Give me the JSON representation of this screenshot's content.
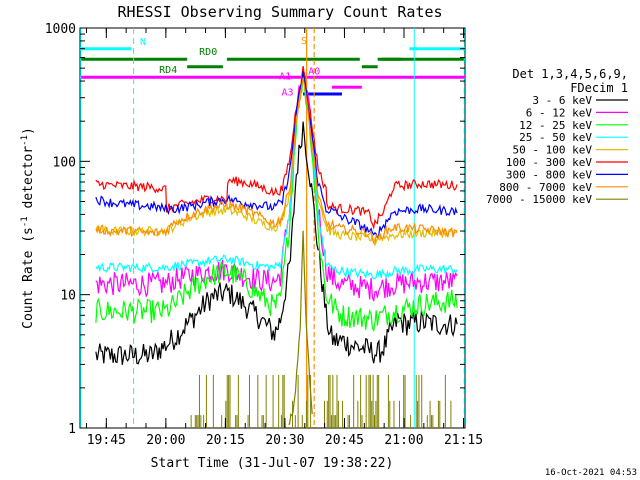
{
  "chart_data": {
    "type": "line",
    "title": "RHESSI Observing Summary Count Rates",
    "xlabel": "Start Time (31-Jul-07 19:38:22)",
    "ylabel": "Count Rate (s⁻¹ detector⁻¹)",
    "ylabel_parts": {
      "main": "Count Rate (s",
      "sup1": "-1",
      "mid": " detector",
      "sup2": "-1",
      "end": ")"
    },
    "yscale": "log",
    "ylim": [
      1,
      1000
    ],
    "xlim_minutes": [
      0,
      97
    ],
    "y_ticks": [
      {
        "value": 1,
        "label": "1"
      },
      {
        "value": 10,
        "label": "10"
      },
      {
        "value": 100,
        "label": "100"
      },
      {
        "value": 1000,
        "label": "1000"
      }
    ],
    "x_ticks": [
      {
        "minutes": 6.63,
        "label": "19:45"
      },
      {
        "minutes": 21.63,
        "label": "20:00"
      },
      {
        "minutes": 36.63,
        "label": "20:15"
      },
      {
        "minutes": 51.63,
        "label": "20:30"
      },
      {
        "minutes": 66.63,
        "label": "20:45"
      },
      {
        "minutes": 81.63,
        "label": "21:00"
      },
      {
        "minutes": 96.63,
        "label": "21:15"
      }
    ],
    "legend": {
      "placement": "right",
      "header": [
        "Det 1,3,4,5,6,9,",
        "FDecim 1"
      ]
    },
    "series": [
      {
        "name": "3 - 6 keV",
        "color": "#000000",
        "x": [
          4,
          7,
          13,
          18,
          21.6,
          24,
          28,
          33,
          37.2,
          41,
          45,
          49,
          50.5,
          53,
          54.5,
          56.2,
          58,
          60,
          62,
          63,
          64,
          66.5,
          68,
          71,
          73,
          75,
          76.5,
          78,
          80,
          82,
          86,
          91,
          95
        ],
        "y": [
          3.5,
          3.5,
          3.5,
          3.5,
          4.2,
          4.8,
          6.5,
          9.5,
          10.5,
          8.6,
          6.8,
          5.1,
          6.5,
          18,
          80,
          190,
          75,
          22,
          7,
          5,
          4.5,
          4.5,
          4.2,
          4,
          3.8,
          3.6,
          4,
          5,
          6.5,
          6,
          6.2,
          6,
          6
        ]
      },
      {
        "name": "6 - 12 keV",
        "color": "#ff00ff",
        "x": [
          4,
          13,
          18,
          21.6,
          24,
          28,
          33,
          37.2,
          41,
          45,
          49,
          50.5,
          53,
          54.5,
          56.2,
          58,
          60,
          62,
          63,
          64,
          66,
          70,
          74,
          76.5,
          79,
          86,
          95
        ],
        "y": [
          12,
          12,
          12,
          12,
          13,
          14,
          15,
          15.5,
          14,
          13,
          12.5,
          14,
          50,
          220,
          480,
          200,
          45,
          16,
          14,
          13,
          12,
          11.5,
          11,
          11.5,
          12,
          12.5,
          12.5
        ]
      },
      {
        "name": "12 - 25 keV",
        "color": "#00ff00",
        "x": [
          4,
          13,
          18,
          21.6,
          24,
          28,
          33,
          37.2,
          41,
          45,
          49,
          50.5,
          53,
          54.5,
          56.2,
          58,
          60,
          62,
          63,
          64,
          66,
          70,
          74,
          76.5,
          79,
          86,
          95
        ],
        "y": [
          7.5,
          7.5,
          7.5,
          7.5,
          8.5,
          11,
          14,
          15,
          13,
          10,
          8,
          9,
          40,
          200,
          450,
          180,
          30,
          10,
          9,
          8,
          7,
          6.8,
          6.5,
          7,
          7.5,
          8.5,
          9
        ]
      },
      {
        "name": "25 - 50 keV",
        "color": "#00ffff",
        "x": [
          4,
          13,
          18,
          21.6,
          24,
          28,
          33,
          37.2,
          41,
          45,
          49,
          50.5,
          53,
          54.5,
          56.2,
          58,
          60,
          62,
          63,
          64,
          66,
          70,
          74,
          76.5,
          79,
          86,
          95
        ],
        "y": [
          16,
          16,
          16,
          16,
          16.5,
          17,
          18,
          18.5,
          17.5,
          16.5,
          16,
          17,
          45,
          220,
          470,
          200,
          40,
          17,
          16,
          15.5,
          15,
          14.5,
          14,
          14.5,
          15,
          15.5,
          15.5
        ]
      },
      {
        "name": "50 - 100 keV",
        "color": "#e0c000",
        "x": [
          4,
          13,
          18,
          21.6,
          24,
          28,
          33,
          37.2,
          41,
          45,
          49,
          50.5,
          53,
          54.5,
          56.2,
          58,
          60,
          62,
          63,
          64,
          66,
          70,
          74,
          76.5,
          79,
          86,
          95
        ],
        "y": [
          30,
          30,
          30,
          30,
          33,
          38,
          42,
          43,
          40,
          35,
          32,
          34,
          60,
          230,
          480,
          210,
          55,
          32,
          30,
          29,
          28,
          27,
          26,
          27,
          28,
          29,
          29
        ]
      },
      {
        "name": "100 - 300 keV",
        "color": "#ff0000",
        "x": [
          4,
          8,
          13,
          18,
          21.6,
          21.8,
          24,
          28,
          33,
          37,
          37.3,
          41,
          45,
          49,
          51,
          53,
          54.5,
          56.2,
          58,
          60,
          62,
          62.3,
          64,
          66,
          70,
          73,
          74,
          76.5,
          79,
          86,
          95
        ],
        "y": [
          68,
          66,
          65,
          64,
          62,
          44,
          46,
          49,
          53,
          52,
          72,
          70,
          65,
          58,
          62,
          110,
          260,
          490,
          230,
          90,
          60,
          46,
          45,
          44,
          43,
          40,
          33,
          42,
          65,
          68,
          66
        ]
      },
      {
        "name": "300 - 800 keV",
        "color": "#0000ff",
        "x": [
          4,
          8,
          13,
          18,
          21.6,
          24,
          28,
          33,
          37.2,
          41,
          45,
          49,
          51,
          53,
          54.5,
          56.2,
          58,
          60,
          62,
          64,
          66,
          70,
          73,
          74,
          76.5,
          79,
          86,
          95
        ],
        "y": [
          52,
          49,
          47,
          46,
          44,
          44,
          46,
          50,
          52,
          49,
          47,
          45,
          50,
          90,
          230,
          460,
          200,
          70,
          44,
          42,
          38,
          34,
          30,
          27,
          33,
          42,
          44,
          42
        ]
      },
      {
        "name": "800 - 7000 keV",
        "color": "#ff8c00",
        "x": [
          4,
          8,
          13,
          18,
          21.6,
          24,
          28,
          33,
          37.2,
          41,
          45,
          49,
          51,
          53,
          54.5,
          56.2,
          58,
          60,
          62,
          64,
          66,
          70,
          73,
          74,
          76.5,
          79,
          86,
          95
        ],
        "y": [
          31,
          30,
          30,
          29,
          30,
          35,
          40,
          45,
          47,
          44,
          39,
          34,
          38,
          70,
          200,
          430,
          170,
          55,
          34,
          33,
          31,
          30,
          29,
          25,
          29,
          32,
          31,
          29
        ]
      },
      {
        "name": "7000 - 15000 keV",
        "color": "#808000",
        "x": [
          52.5,
          54,
          55.5,
          56.2,
          57,
          58.5
        ],
        "y": [
          1,
          1.5,
          6,
          30,
          6,
          1.2
        ],
        "sparse_noise": {
          "x_range": [
            28,
            95
          ],
          "levels": [
            1,
            1.25,
            1.6,
            2.5
          ]
        }
      }
    ],
    "annotations": {
      "attenuator": [
        {
          "label": "A1",
          "x": 53.2,
          "y": 440
        },
        {
          "label": "A3",
          "x": 53.8,
          "y": 335
        },
        {
          "label": "A0",
          "x": 57.5,
          "y": 480
        }
      ],
      "state_bars": [
        {
          "label": "N",
          "color": "#00ffff",
          "segments": [
            [
              0,
              13
            ],
            [
              83,
              97
            ]
          ],
          "level_fraction": 0.052
        },
        {
          "label": "RD0",
          "color": "#008000",
          "segments": [
            [
              0,
              27
            ],
            [
              37,
              70.5
            ],
            [
              75,
              81
            ],
            [
              76,
              97
            ]
          ],
          "level_fraction": 0.078
        },
        {
          "label": "RD4",
          "color": "#008000",
          "segments": [
            [
              27,
              36
            ],
            [
              71,
              75
            ]
          ],
          "level_fraction": 0.097
        },
        {
          "label": "",
          "color": "#ff00ff",
          "segments": [
            [
              0,
              97
            ]
          ],
          "level_fraction": 0.123
        },
        {
          "label": "",
          "color": "#0000ff",
          "segments": [
            [
              56.2,
              66
            ]
          ],
          "level_fraction": 0.165
        },
        {
          "label": "",
          "color": "#ff00ff",
          "segments": [
            [
              63.5,
              67.5
            ],
            [
              67.5,
              71
            ]
          ],
          "level_fraction": 0.148
        }
      ],
      "S": {
        "label": "S",
        "x": 56.7
      },
      "orange_lines_x": [
        57.1,
        59.0
      ],
      "cyan_dashed_x": [
        13.5,
        96.8
      ],
      "cyan_solid_x": [
        0.2,
        84.2
      ]
    }
  },
  "timestamp": "16-Oct-2021 04:53"
}
